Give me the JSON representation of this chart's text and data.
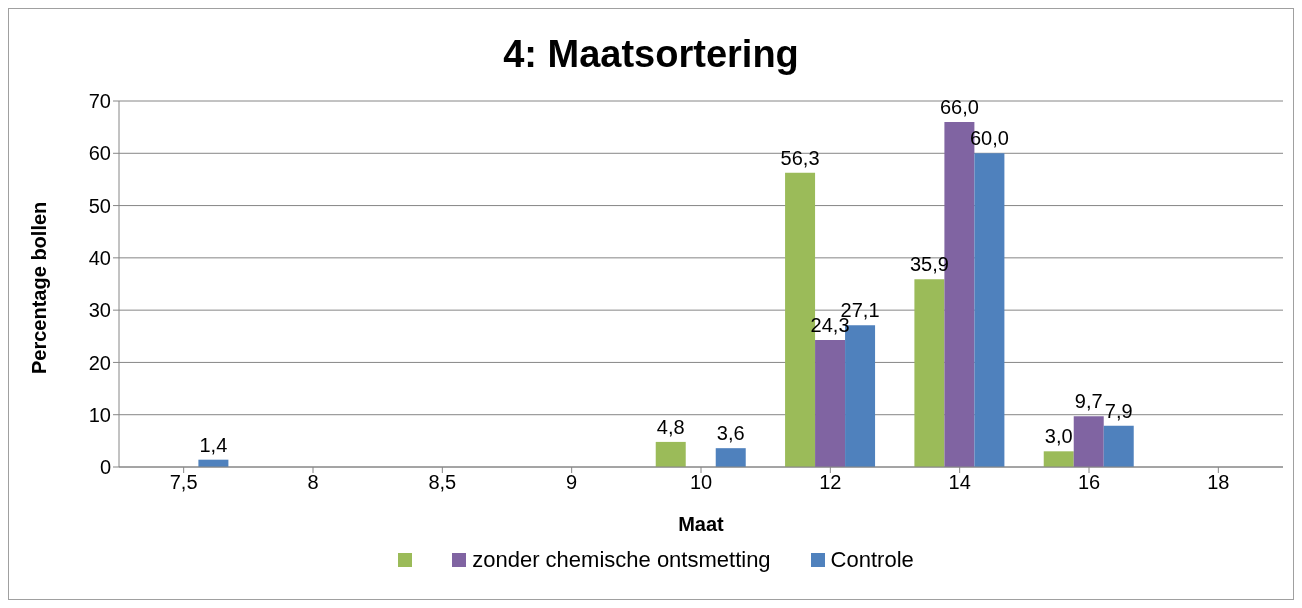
{
  "chart_data": {
    "type": "bar",
    "title": "4: Maatsortering",
    "xlabel": "Maat",
    "ylabel": "Percentage bollen",
    "categories": [
      "7,5",
      "8",
      "8,5",
      "9",
      "10",
      "12",
      "14",
      "16",
      "18"
    ],
    "series": [
      {
        "color": "#9bbb59",
        "values": [
          null,
          null,
          null,
          null,
          4.8,
          56.3,
          35.9,
          3.0,
          null
        ],
        "value_labels": [
          null,
          null,
          null,
          null,
          "4,8",
          "56,3",
          "35,9",
          "3,0",
          null
        ]
      },
      {
        "name": "zonder chemische ontsmetting",
        "color": "#8064a2",
        "values": [
          null,
          null,
          null,
          null,
          null,
          24.3,
          66.0,
          9.7,
          null
        ],
        "value_labels": [
          null,
          null,
          null,
          null,
          null,
          "24,3",
          "66,0",
          "9,7",
          null
        ]
      },
      {
        "name": "Controle",
        "color": "#4f81bd",
        "values": [
          1.4,
          null,
          null,
          null,
          3.6,
          27.1,
          60.0,
          7.9,
          null
        ],
        "value_labels": [
          "1,4",
          null,
          null,
          null,
          "3,6",
          "27,1",
          "60,0",
          "7,9",
          null
        ]
      }
    ],
    "ylim": [
      0,
      70
    ],
    "yticks": [
      0,
      10,
      20,
      30,
      40,
      50,
      60,
      70
    ],
    "grid": "y",
    "legend": "bottom"
  }
}
